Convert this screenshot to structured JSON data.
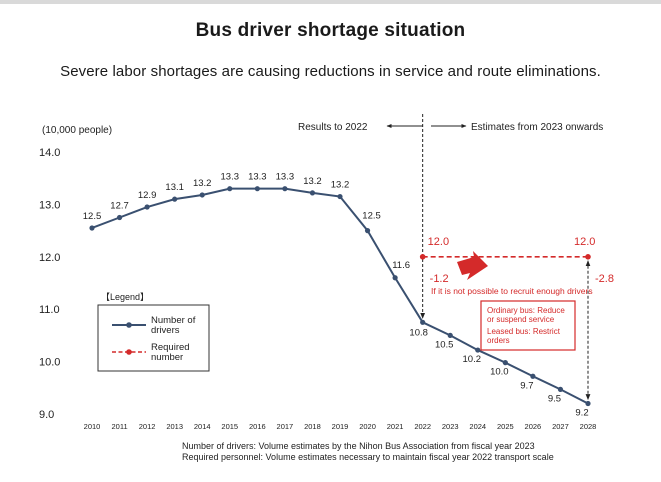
{
  "title": "Bus driver shortage situation",
  "subtitle": "Severe labor shortages are causing reductions in service and route eliminations.",
  "chart_data": {
    "type": "line",
    "title": "Bus driver shortage situation",
    "ylabel": "(10,000 people)",
    "xlabel": "",
    "ylim": [
      9.0,
      14.0
    ],
    "yticks": [
      "14.0",
      "13.0",
      "12.0",
      "11.0",
      "10.0",
      "9.0"
    ],
    "categories": [
      "2010",
      "2011",
      "2012",
      "2013",
      "2014",
      "2015",
      "2016",
      "2017",
      "2018",
      "2019",
      "2020",
      "2021",
      "2022",
      "2023",
      "2024",
      "2025",
      "2026",
      "2027",
      "2028"
    ],
    "series": [
      {
        "name": "Number of drivers",
        "values": [
          12.55,
          12.75,
          12.95,
          13.1,
          13.18,
          13.3,
          13.3,
          13.3,
          13.22,
          13.15,
          12.5,
          11.6,
          10.75,
          10.5,
          10.22,
          9.98,
          9.72,
          9.47,
          9.2
        ],
        "labels": [
          "12.5",
          "12.7",
          "12.9",
          "13.1",
          "13.2",
          "13.3",
          "13.3",
          "13.3",
          "13.2",
          "13.2",
          "12.5",
          "11.6",
          "10.8",
          "10.5",
          "10.2",
          "10.0",
          "9.7",
          "9.5",
          "9.2"
        ],
        "color": "#3a5070"
      },
      {
        "name": "Required number",
        "x_start": "2022",
        "x_end": "2028",
        "value": 12.0,
        "label_start": "12.0",
        "label_end": "12.0",
        "color": "#d42a2a"
      }
    ],
    "legend": {
      "header": "【Legend】",
      "items": [
        "Number of\ndrivers",
        "Required\nnumber"
      ]
    },
    "annotations": {
      "results_label": "Results to 2022",
      "estimates_label": "Estimates from 2023 onwards",
      "gap_2022": "-1.2",
      "gap_2028": "-2.8",
      "recruit_note": "If it is not possible to recruit enough drivers",
      "box_lines": [
        "Ordinary bus: Reduce",
        "or suspend service",
        "Leased bus: Restrict",
        "orders"
      ]
    },
    "colors": {
      "line": "#3a5070",
      "required": "#d42a2a",
      "arrow": "#d42a2a"
    }
  },
  "footnotes": [
    "Number of drivers: Volume estimates by the Nihon Bus Association from fiscal year 2023",
    "Required personnel: Volume estimates necessary to maintain fiscal year 2022 transport scale"
  ]
}
